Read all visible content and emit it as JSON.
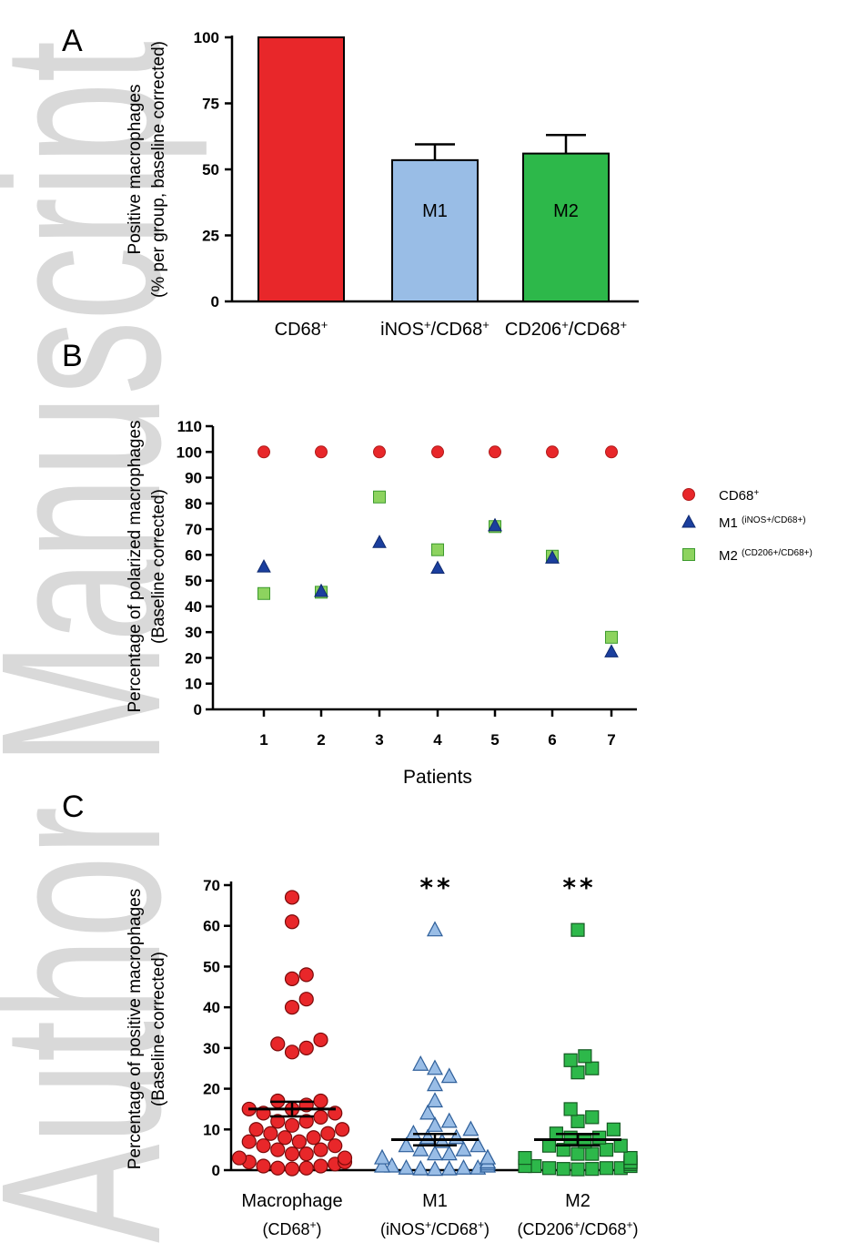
{
  "watermark": {
    "lines": [
      "Author Manuscript"
    ]
  },
  "colors": {
    "cd68": "#e8272a",
    "m1_light": "#99bde6",
    "m1_dark": "#1b3f9e",
    "m2": "#2db84a",
    "m2_light": "#8dd35f"
  },
  "chart_data": [
    {
      "panel": "A",
      "type": "bar",
      "ylabel": "Positive macrophages",
      "ylabel2": "(% per group, baseline corrected)",
      "ylim": [
        0,
        100
      ],
      "yticks": [
        "0",
        "25",
        "50",
        "75",
        "100"
      ],
      "categories": [
        {
          "label_main": "CD68",
          "label_sup": "+",
          "label_post": ""
        },
        {
          "label_main": "iNOS",
          "label_sup": "+",
          "label_post": "/CD68",
          "label_sup2": "+"
        },
        {
          "label_main": "CD206",
          "label_sup": "+",
          "label_post": "/CD68",
          "label_sup2": "+"
        }
      ],
      "bar_text": [
        "",
        "M1",
        "M2"
      ],
      "values": [
        100,
        53.5,
        56
      ],
      "errors": [
        0,
        6,
        7
      ]
    },
    {
      "panel": "B",
      "type": "scatter",
      "xlabel": "Patients",
      "ylabel": "Percentage of polarized macrophages",
      "ylabel2": "(Baseline corrected)",
      "ylim": [
        0,
        110
      ],
      "yticks": [
        "0",
        "10",
        "20",
        "30",
        "40",
        "50",
        "60",
        "70",
        "80",
        "90",
        "100",
        "110"
      ],
      "x": [
        1,
        2,
        3,
        4,
        5,
        6,
        7
      ],
      "xticks": [
        "1",
        "2",
        "3",
        "4",
        "5",
        "6",
        "7"
      ],
      "series": [
        {
          "name": "CD68",
          "name_sup": "+",
          "values": [
            100,
            100,
            100,
            100,
            100,
            100,
            100
          ]
        },
        {
          "name": "M1 ",
          "name_sup": "(iNOS+/CD68+)",
          "values": [
            55.5,
            46,
            65,
            55,
            71.5,
            59,
            22.5
          ]
        },
        {
          "name": "M2 ",
          "name_sup": "(CD206+/CD68+)",
          "values": [
            45,
            45.5,
            82.5,
            62,
            71,
            59.5,
            28
          ]
        }
      ],
      "legend_position": "right"
    },
    {
      "panel": "C",
      "type": "scatter",
      "ylabel": "Percentage of positive macrophages",
      "ylabel2": "(Baseline corrected)",
      "ylim": [
        0,
        70
      ],
      "yticks": [
        "0",
        "10",
        "20",
        "30",
        "40",
        "50",
        "60",
        "70"
      ],
      "groups": [
        {
          "label1": "Macrophage",
          "label2_pre": "(CD68",
          "label2_sup": "+",
          "label2_post": ")",
          "mean": 15,
          "sem": 1.8,
          "annotation": "",
          "values": [
            67,
            61,
            48,
            47,
            42,
            40,
            32,
            31,
            30,
            29,
            17,
            17,
            16,
            15,
            15,
            14,
            14,
            13,
            12,
            12,
            11,
            10,
            10,
            9,
            9,
            8,
            8,
            7,
            7,
            6,
            6,
            5,
            5,
            4,
            4,
            3,
            3,
            2,
            2,
            1.5,
            1,
            1,
            0.5,
            0.5,
            0.3
          ]
        },
        {
          "label1": "M1",
          "label2_pre": "(iNOS",
          "label2_sup": "+",
          "label2_post": "/CD68",
          "label2_sup2": "+",
          "label2_post2": ")",
          "mean": 7.5,
          "sem": 1.4,
          "annotation": "**",
          "values": [
            59,
            26,
            25,
            23,
            21,
            17,
            14,
            12,
            11,
            10,
            9,
            8,
            8,
            7,
            6,
            6,
            5,
            5,
            4,
            4,
            3,
            3,
            3,
            2,
            2,
            2,
            1.5,
            1,
            1,
            1,
            0.5,
            0.5,
            0.5,
            0.3,
            0.3,
            0.2
          ]
        },
        {
          "label1": "M2",
          "label2_pre": "(CD206",
          "label2_sup": "+",
          "label2_post": "/CD68",
          "label2_sup2": "+",
          "label2_post2": ")",
          "mean": 7.5,
          "sem": 1.4,
          "annotation": "**",
          "values": [
            59,
            28,
            27,
            25,
            24,
            15,
            13,
            12,
            10,
            9,
            8,
            8,
            7,
            6,
            6,
            5,
            5,
            4,
            4,
            3,
            3,
            3,
            2,
            2,
            2,
            1.5,
            1,
            1,
            1,
            0.5,
            0.5,
            0.5,
            0.3,
            0.3,
            0.2
          ]
        }
      ]
    }
  ]
}
